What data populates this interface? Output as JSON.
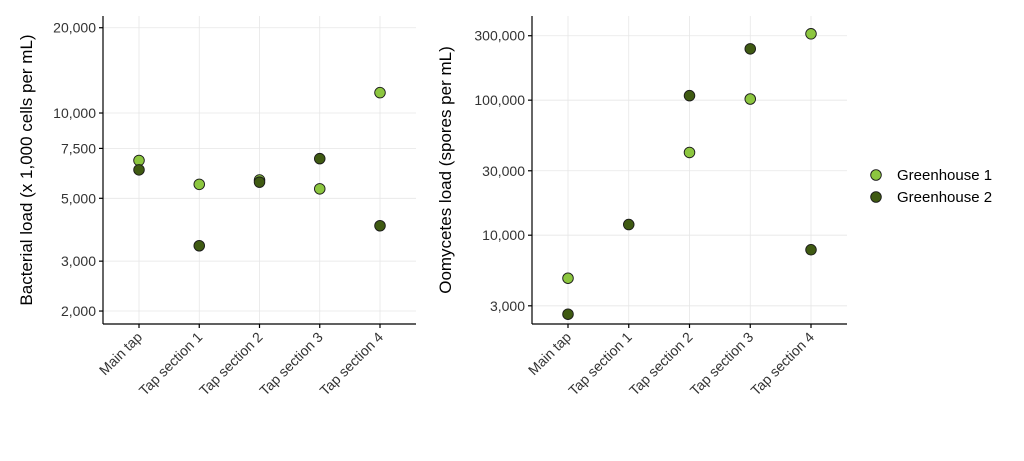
{
  "chart_data": [
    {
      "type": "scatter",
      "ylabel": "Bacterial load (x 1,000 cells per mL)",
      "xlabel": "",
      "yscale": "log",
      "ylim": [
        1800,
        22000
      ],
      "yticks": [
        2000,
        3000,
        5000,
        7500,
        10000,
        20000
      ],
      "ytick_labels": [
        "2,000",
        "3,000",
        "5,000",
        "7,500",
        "10,000",
        "20,000"
      ],
      "categories": [
        "Main tap",
        "Tap section 1",
        "Tap section 2",
        "Tap section 3",
        "Tap section 4"
      ],
      "series": [
        {
          "name": "Greenhouse 1",
          "values": [
            6800,
            5600,
            5800,
            5400,
            11800
          ]
        },
        {
          "name": "Greenhouse 2",
          "values": [
            6300,
            3400,
            5700,
            6900,
            4000
          ]
        }
      ],
      "grid": true
    },
    {
      "type": "scatter",
      "ylabel": "Oomycetes load (spores per mL)",
      "xlabel": "",
      "yscale": "log",
      "ylim": [
        2200,
        420000
      ],
      "yticks": [
        3000,
        10000,
        30000,
        100000,
        300000
      ],
      "ytick_labels": [
        "3,000",
        "10,000",
        "30,000",
        "100,000",
        "300,000"
      ],
      "categories": [
        "Main tap",
        "Tap section 1",
        "Tap section 2",
        "Tap section 3",
        "Tap section 4"
      ],
      "series": [
        {
          "name": "Greenhouse 1",
          "values": [
            4800,
            null,
            41000,
            102000,
            310000
          ]
        },
        {
          "name": "Greenhouse 2",
          "values": [
            2600,
            12000,
            108000,
            240000,
            7800
          ]
        }
      ],
      "grid": true
    }
  ],
  "legend": {
    "placement": "right",
    "items": [
      {
        "label": "Greenhouse 1",
        "color": "#8cc63f"
      },
      {
        "label": "Greenhouse 2",
        "color": "#3f5a12"
      }
    ]
  },
  "colors": {
    "Greenhouse 1": "#8cc63f",
    "Greenhouse 2": "#3f5a12",
    "marker_stroke": "#1a1a1a"
  }
}
